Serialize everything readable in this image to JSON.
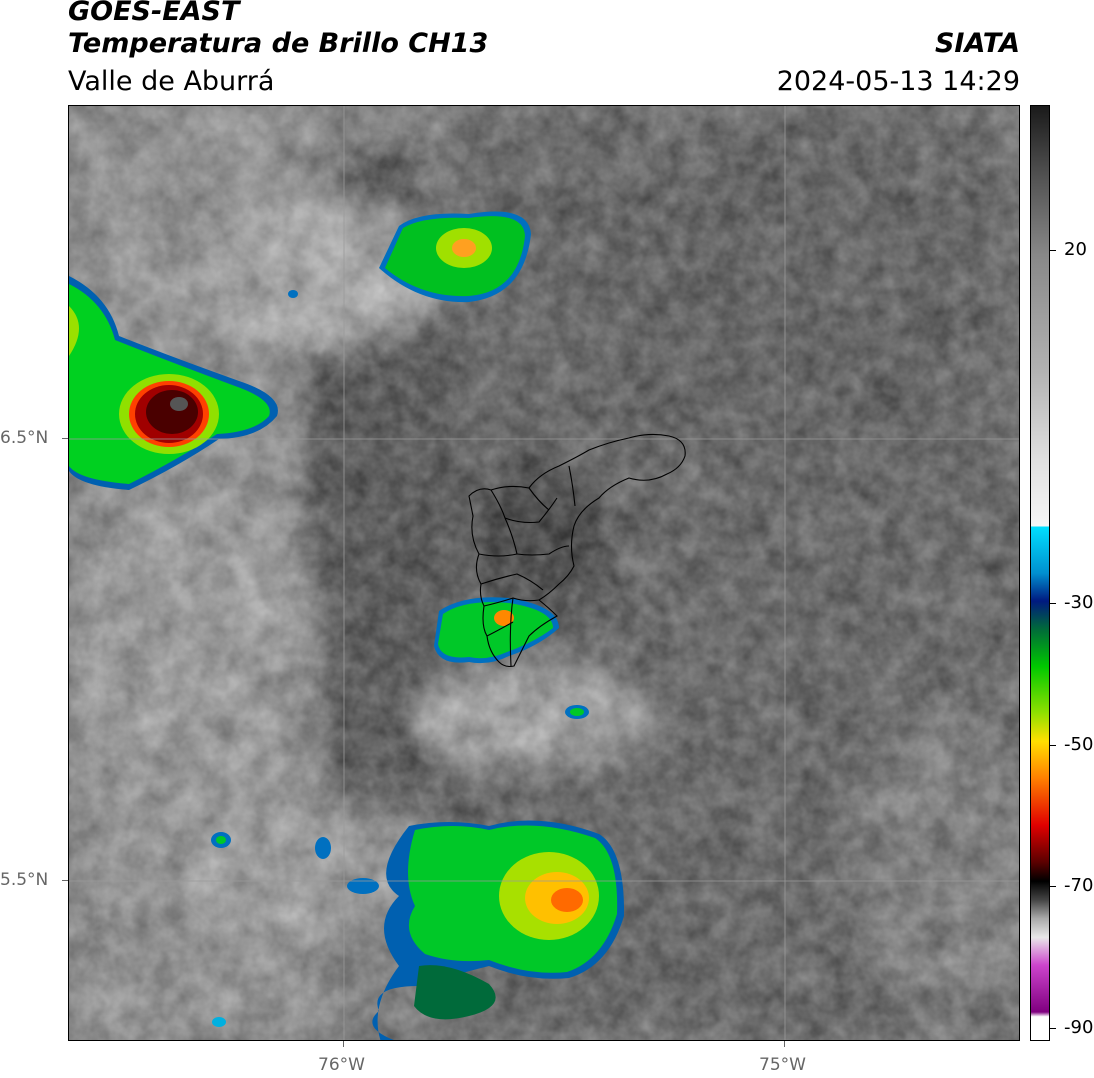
{
  "header": {
    "satellite": "GOES-EAST",
    "product": "Temperatura de Brillo CH13",
    "region": "Valle de Aburrá",
    "agency": "SIATA",
    "datetime": "2024-05-13 14:29"
  },
  "map": {
    "lat_ticks": [
      "6.5°N",
      "5.5°N"
    ],
    "lon_ticks": [
      "76°W",
      "75°W"
    ]
  },
  "colorbar": {
    "labels": [
      "20",
      "-30",
      "-50",
      "-70",
      "-90"
    ],
    "range": [
      -92,
      34
    ],
    "colors": {
      "white": "#ffffff",
      "magenta": "#cc44cc",
      "dark_red": "#5a0000",
      "red": "#e00000",
      "orange": "#ff7f00",
      "yellow": "#ffe000",
      "green": "#00c800",
      "dark_green": "#006a3a",
      "navy": "#001a80",
      "cyan": "#00e0ff"
    }
  }
}
